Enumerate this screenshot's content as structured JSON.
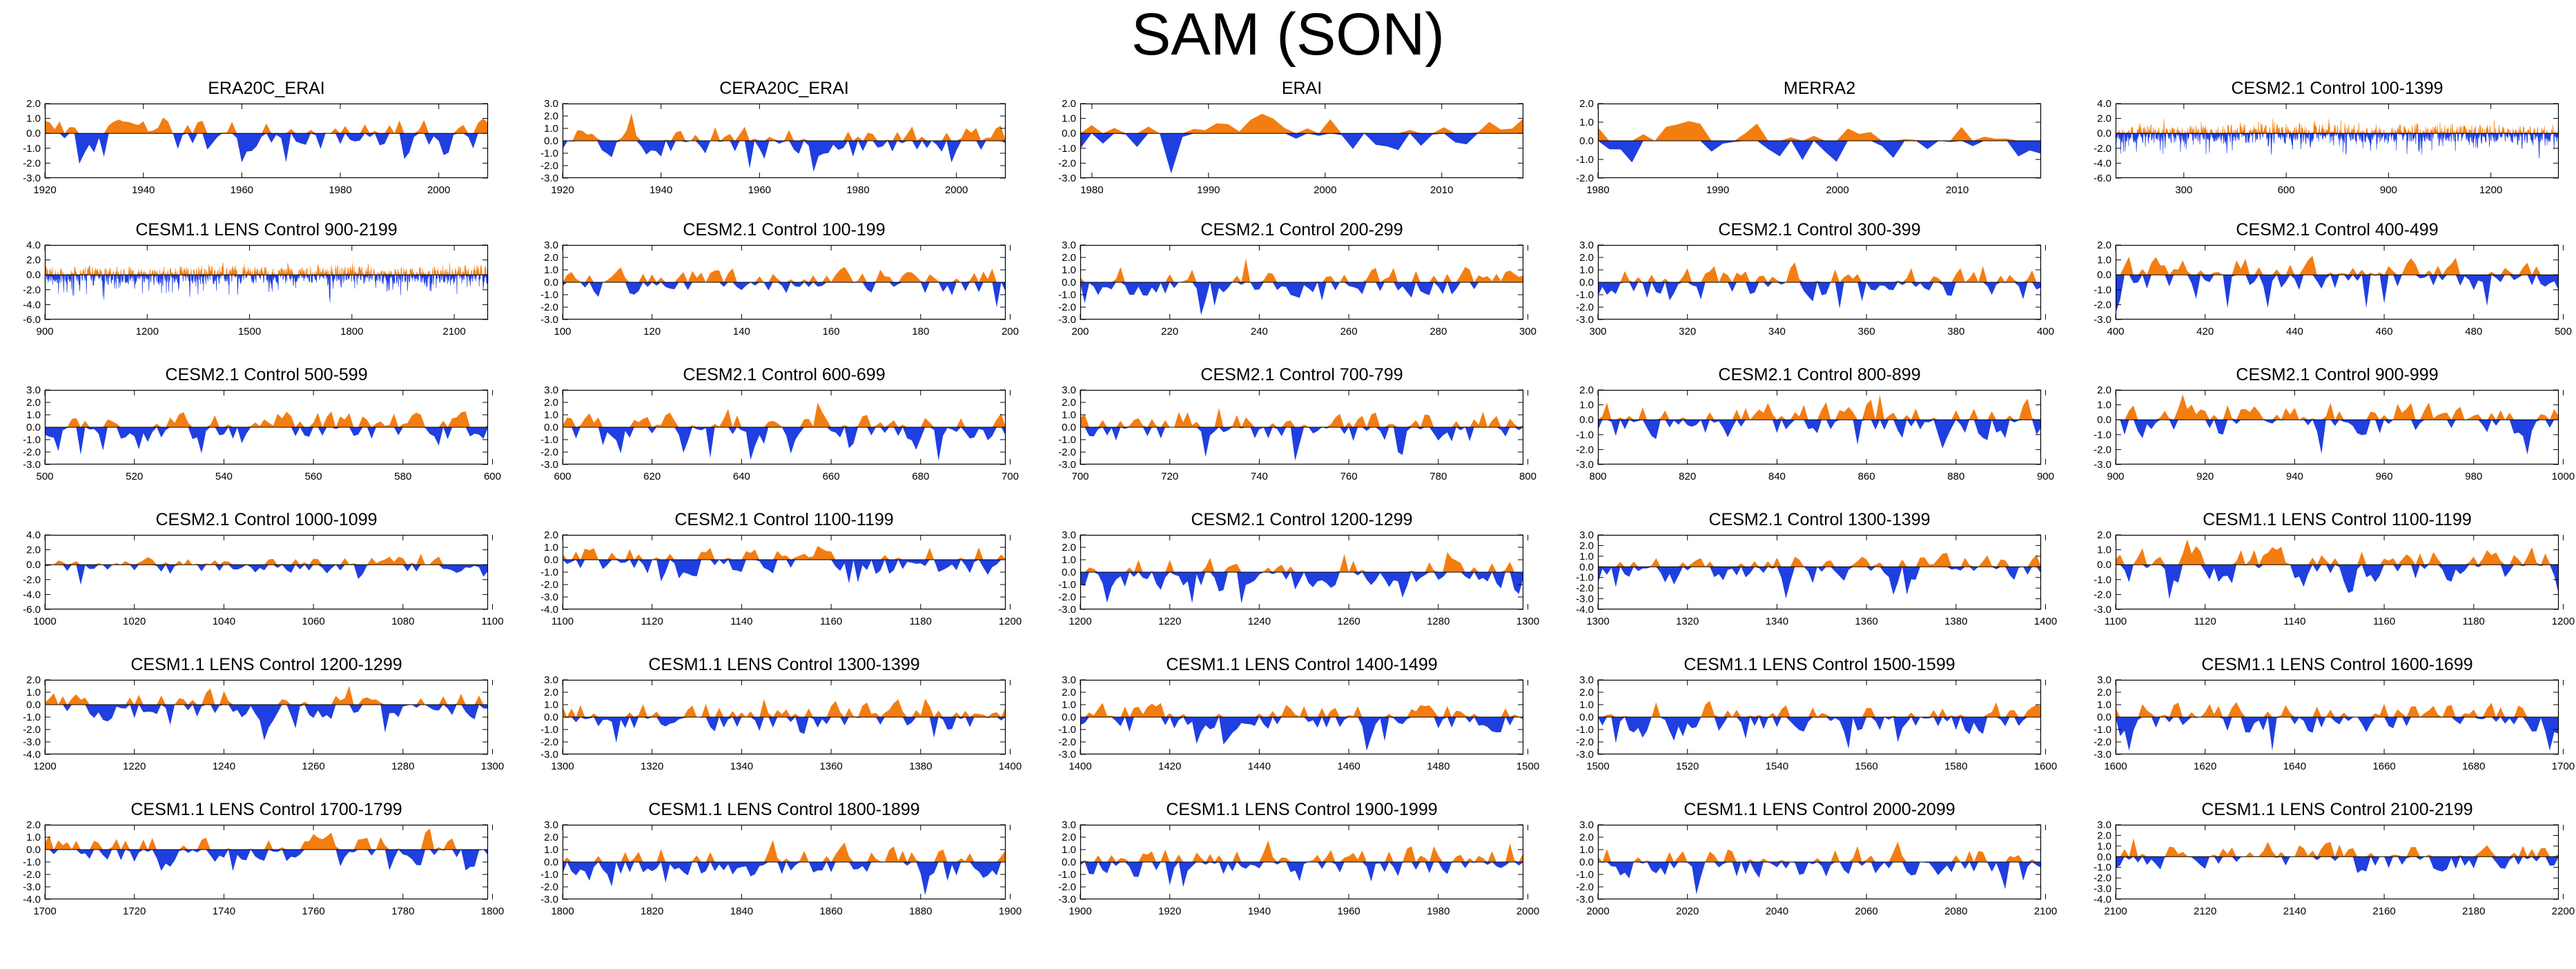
{
  "page": {
    "title": "SAM (SON)"
  },
  "colors": {
    "positive": "#f47d10",
    "negative": "#1f3fe0",
    "axis": "#000000"
  },
  "chart_data": [
    {
      "type": "area",
      "title": "ERA20C_ERAI",
      "xlim": [
        1920,
        2010
      ],
      "xticks": [
        1920,
        1940,
        1960,
        1980,
        2000
      ],
      "yticks": [
        2.0,
        1.0,
        0.0,
        -1.0,
        -2.0,
        -3.0
      ],
      "ylim": [
        -3.0,
        2.0
      ],
      "seed": 11,
      "dense": false
    },
    {
      "type": "area",
      "title": "CERA20C_ERAI",
      "xlim": [
        1920,
        2010
      ],
      "xticks": [
        1920,
        1940,
        1960,
        1980,
        2000
      ],
      "yticks": [
        3.0,
        2.0,
        1.0,
        0.0,
        -1.0,
        -2.0,
        -3.0
      ],
      "ylim": [
        -3.0,
        3.0
      ],
      "seed": 12,
      "dense": false
    },
    {
      "type": "area",
      "title": "ERAI",
      "xlim": [
        1979,
        2017
      ],
      "xticks": [
        1980,
        1990,
        2000,
        2010
      ],
      "yticks": [
        2.0,
        1.0,
        0.0,
        -1.0,
        -2.0,
        -3.0
      ],
      "ylim": [
        -3.0,
        2.0
      ],
      "seed": 13,
      "dense": false
    },
    {
      "type": "area",
      "title": "MERRA2",
      "xlim": [
        1980,
        2017
      ],
      "xticks": [
        1980,
        1990,
        2000,
        2010
      ],
      "yticks": [
        2.0,
        1.0,
        0.0,
        -1.0,
        -2.0
      ],
      "ylim": [
        -2.0,
        2.0
      ],
      "seed": 14,
      "dense": false
    },
    {
      "type": "area",
      "title": "CESM2.1 Control 100-1399",
      "xlim": [
        100,
        1399
      ],
      "xticks": [
        300,
        600,
        900,
        1200
      ],
      "yticks": [
        4.0,
        2.0,
        0.0,
        -2.0,
        -4.0,
        -6.0
      ],
      "ylim": [
        -6.0,
        4.0
      ],
      "seed": 15,
      "dense": true
    },
    {
      "type": "area",
      "title": "CESM1.1 LENS Control 900-2199",
      "xlim": [
        900,
        2199
      ],
      "xticks": [
        900,
        1200,
        1500,
        1800,
        2100
      ],
      "yticks": [
        4.0,
        2.0,
        0.0,
        -2.0,
        -4.0,
        -6.0
      ],
      "ylim": [
        -6.0,
        4.0
      ],
      "seed": 21,
      "dense": true
    },
    {
      "type": "area",
      "title": "CESM2.1 Control 100-199",
      "xlim": [
        100,
        199
      ],
      "xticks": [
        100,
        120,
        140,
        160,
        180,
        200
      ],
      "yticks": [
        3.0,
        2.0,
        1.0,
        0.0,
        -1.0,
        -2.0,
        -3.0
      ],
      "ylim": [
        -3.0,
        3.0
      ],
      "seed": 22,
      "dense": false
    },
    {
      "type": "area",
      "title": "CESM2.1 Control 200-299",
      "xlim": [
        200,
        299
      ],
      "xticks": [
        200,
        220,
        240,
        260,
        280,
        300
      ],
      "yticks": [
        3.0,
        2.0,
        1.0,
        0.0,
        -1.0,
        -2.0,
        -3.0
      ],
      "ylim": [
        -3.0,
        3.0
      ],
      "seed": 23,
      "dense": false
    },
    {
      "type": "area",
      "title": "CESM2.1 Control 300-399",
      "xlim": [
        300,
        399
      ],
      "xticks": [
        300,
        320,
        340,
        360,
        380,
        400
      ],
      "yticks": [
        3.0,
        2.0,
        1.0,
        0.0,
        -1.0,
        -2.0,
        -3.0
      ],
      "ylim": [
        -3.0,
        3.0
      ],
      "seed": 24,
      "dense": false
    },
    {
      "type": "area",
      "title": "CESM2.1 Control 400-499",
      "xlim": [
        400,
        499
      ],
      "xticks": [
        400,
        420,
        440,
        460,
        480,
        500
      ],
      "yticks": [
        2.0,
        1.0,
        0.0,
        -1.0,
        -2.0,
        -3.0
      ],
      "ylim": [
        -3.0,
        2.0
      ],
      "seed": 25,
      "dense": false
    },
    {
      "type": "area",
      "title": "CESM2.1 Control 500-599",
      "xlim": [
        500,
        599
      ],
      "xticks": [
        500,
        520,
        540,
        560,
        580,
        600
      ],
      "yticks": [
        3.0,
        2.0,
        1.0,
        0.0,
        -1.0,
        -2.0,
        -3.0
      ],
      "ylim": [
        -3.0,
        3.0
      ],
      "seed": 31,
      "dense": false
    },
    {
      "type": "area",
      "title": "CESM2.1 Control 600-699",
      "xlim": [
        600,
        699
      ],
      "xticks": [
        600,
        620,
        640,
        660,
        680,
        700
      ],
      "yticks": [
        3.0,
        2.0,
        1.0,
        0.0,
        -1.0,
        -2.0,
        -3.0
      ],
      "ylim": [
        -3.0,
        3.0
      ],
      "seed": 32,
      "dense": false
    },
    {
      "type": "area",
      "title": "CESM2.1 Control 700-799",
      "xlim": [
        700,
        799
      ],
      "xticks": [
        700,
        720,
        740,
        760,
        780,
        800
      ],
      "yticks": [
        3.0,
        2.0,
        1.0,
        0.0,
        -1.0,
        -2.0,
        -3.0
      ],
      "ylim": [
        -3.0,
        3.0
      ],
      "seed": 33,
      "dense": false
    },
    {
      "type": "area",
      "title": "CESM2.1 Control 800-899",
      "xlim": [
        800,
        899
      ],
      "xticks": [
        800,
        820,
        840,
        860,
        880,
        900
      ],
      "yticks": [
        2.0,
        1.0,
        0.0,
        -1.0,
        -2.0,
        -3.0
      ],
      "ylim": [
        -3.0,
        2.0
      ],
      "seed": 34,
      "dense": false
    },
    {
      "type": "area",
      "title": "CESM2.1 Control 900-999",
      "xlim": [
        900,
        999
      ],
      "xticks": [
        900,
        920,
        940,
        960,
        980,
        1000
      ],
      "yticks": [
        2.0,
        1.0,
        0.0,
        -1.0,
        -2.0,
        -3.0
      ],
      "ylim": [
        -3.0,
        2.0
      ],
      "seed": 35,
      "dense": false
    },
    {
      "type": "area",
      "title": "CESM2.1 Control 1000-1099",
      "xlim": [
        1000,
        1099
      ],
      "xticks": [
        1000,
        1020,
        1040,
        1060,
        1080,
        1100
      ],
      "yticks": [
        4.0,
        2.0,
        0.0,
        -2.0,
        -4.0,
        -6.0
      ],
      "ylim": [
        -6.0,
        4.0
      ],
      "seed": 41,
      "dense": false
    },
    {
      "type": "area",
      "title": "CESM2.1 Control 1100-1199",
      "xlim": [
        1100,
        1199
      ],
      "xticks": [
        1100,
        1120,
        1140,
        1160,
        1180,
        1200
      ],
      "yticks": [
        2.0,
        1.0,
        0.0,
        -1.0,
        -2.0,
        -3.0,
        -4.0
      ],
      "ylim": [
        -4.0,
        2.0
      ],
      "seed": 42,
      "dense": false
    },
    {
      "type": "area",
      "title": "CESM2.1 Control 1200-1299",
      "xlim": [
        1200,
        1299
      ],
      "xticks": [
        1200,
        1220,
        1240,
        1260,
        1280,
        1300
      ],
      "yticks": [
        3.0,
        2.0,
        1.0,
        0.0,
        -1.0,
        -2.0,
        -3.0
      ],
      "ylim": [
        -3.0,
        3.0
      ],
      "seed": 43,
      "dense": false
    },
    {
      "type": "area",
      "title": "CESM2.1 Control 1300-1399",
      "xlim": [
        1300,
        1399
      ],
      "xticks": [
        1300,
        1320,
        1340,
        1360,
        1380,
        1400
      ],
      "yticks": [
        3.0,
        2.0,
        1.0,
        0.0,
        -1.0,
        -2.0,
        -3.0,
        -4.0
      ],
      "ylim": [
        -4.0,
        3.0
      ],
      "seed": 44,
      "dense": false
    },
    {
      "type": "area",
      "title": "CESM1.1 LENS Control 1100-1199",
      "xlim": [
        1100,
        1199
      ],
      "xticks": [
        1100,
        1120,
        1140,
        1160,
        1180,
        1200
      ],
      "yticks": [
        2.0,
        1.0,
        0.0,
        -1.0,
        -2.0,
        -3.0
      ],
      "ylim": [
        -3.0,
        2.0
      ],
      "seed": 45,
      "dense": false
    },
    {
      "type": "area",
      "title": "CESM1.1 LENS Control 1200-1299",
      "xlim": [
        1200,
        1299
      ],
      "xticks": [
        1200,
        1220,
        1240,
        1260,
        1280,
        1300
      ],
      "yticks": [
        2.0,
        1.0,
        0.0,
        -1.0,
        -2.0,
        -3.0,
        -4.0
      ],
      "ylim": [
        -4.0,
        2.0
      ],
      "seed": 51,
      "dense": false
    },
    {
      "type": "area",
      "title": "CESM1.1 LENS Control 1300-1399",
      "xlim": [
        1300,
        1399
      ],
      "xticks": [
        1300,
        1320,
        1340,
        1360,
        1380,
        1400
      ],
      "yticks": [
        3.0,
        2.0,
        1.0,
        0.0,
        -1.0,
        -2.0,
        -3.0
      ],
      "ylim": [
        -3.0,
        3.0
      ],
      "seed": 52,
      "dense": false
    },
    {
      "type": "area",
      "title": "CESM1.1 LENS Control 1400-1499",
      "xlim": [
        1400,
        1499
      ],
      "xticks": [
        1400,
        1420,
        1440,
        1460,
        1480,
        1500
      ],
      "yticks": [
        3.0,
        2.0,
        1.0,
        0.0,
        -1.0,
        -2.0,
        -3.0
      ],
      "ylim": [
        -3.0,
        3.0
      ],
      "seed": 53,
      "dense": false
    },
    {
      "type": "area",
      "title": "CESM1.1 LENS Control 1500-1599",
      "xlim": [
        1500,
        1599
      ],
      "xticks": [
        1500,
        1520,
        1540,
        1560,
        1580,
        1600
      ],
      "yticks": [
        3.0,
        2.0,
        1.0,
        0.0,
        -1.0,
        -2.0,
        -3.0
      ],
      "ylim": [
        -3.0,
        3.0
      ],
      "seed": 54,
      "dense": false
    },
    {
      "type": "area",
      "title": "CESM1.1 LENS Control 1600-1699",
      "xlim": [
        1600,
        1699
      ],
      "xticks": [
        1600,
        1620,
        1640,
        1660,
        1680,
        1700
      ],
      "yticks": [
        3.0,
        2.0,
        1.0,
        0.0,
        -1.0,
        -2.0,
        -3.0
      ],
      "ylim": [
        -3.0,
        3.0
      ],
      "seed": 55,
      "dense": false
    },
    {
      "type": "area",
      "title": "CESM1.1 LENS Control 1700-1799",
      "xlim": [
        1700,
        1799
      ],
      "xticks": [
        1700,
        1720,
        1740,
        1760,
        1780,
        1800
      ],
      "yticks": [
        2.0,
        1.0,
        0.0,
        -1.0,
        -2.0,
        -3.0,
        -4.0
      ],
      "ylim": [
        -4.0,
        2.0
      ],
      "seed": 61,
      "dense": false
    },
    {
      "type": "area",
      "title": "CESM1.1 LENS Control 1800-1899",
      "xlim": [
        1800,
        1899
      ],
      "xticks": [
        1800,
        1820,
        1840,
        1860,
        1880,
        1900
      ],
      "yticks": [
        3.0,
        2.0,
        1.0,
        0.0,
        -1.0,
        -2.0,
        -3.0
      ],
      "ylim": [
        -3.0,
        3.0
      ],
      "seed": 62,
      "dense": false
    },
    {
      "type": "area",
      "title": "CESM1.1 LENS Control 1900-1999",
      "xlim": [
        1900,
        1999
      ],
      "xticks": [
        1900,
        1920,
        1940,
        1960,
        1980,
        2000
      ],
      "yticks": [
        3.0,
        2.0,
        1.0,
        0.0,
        -1.0,
        -2.0,
        -3.0
      ],
      "ylim": [
        -3.0,
        3.0
      ],
      "seed": 63,
      "dense": false
    },
    {
      "type": "area",
      "title": "CESM1.1 LENS Control 2000-2099",
      "xlim": [
        2000,
        2099
      ],
      "xticks": [
        2000,
        2020,
        2040,
        2060,
        2080,
        2100
      ],
      "yticks": [
        3.0,
        2.0,
        1.0,
        0.0,
        -1.0,
        -2.0,
        -3.0
      ],
      "ylim": [
        -3.0,
        3.0
      ],
      "seed": 64,
      "dense": false
    },
    {
      "type": "area",
      "title": "CESM1.1 LENS Control 2100-2199",
      "xlim": [
        2100,
        2199
      ],
      "xticks": [
        2100,
        2120,
        2140,
        2160,
        2180,
        2200
      ],
      "yticks": [
        3.0,
        2.0,
        1.0,
        0.0,
        -1.0,
        -2.0,
        -3.0,
        -4.0
      ],
      "ylim": [
        -4.0,
        3.0
      ],
      "seed": 65,
      "dense": false
    }
  ]
}
